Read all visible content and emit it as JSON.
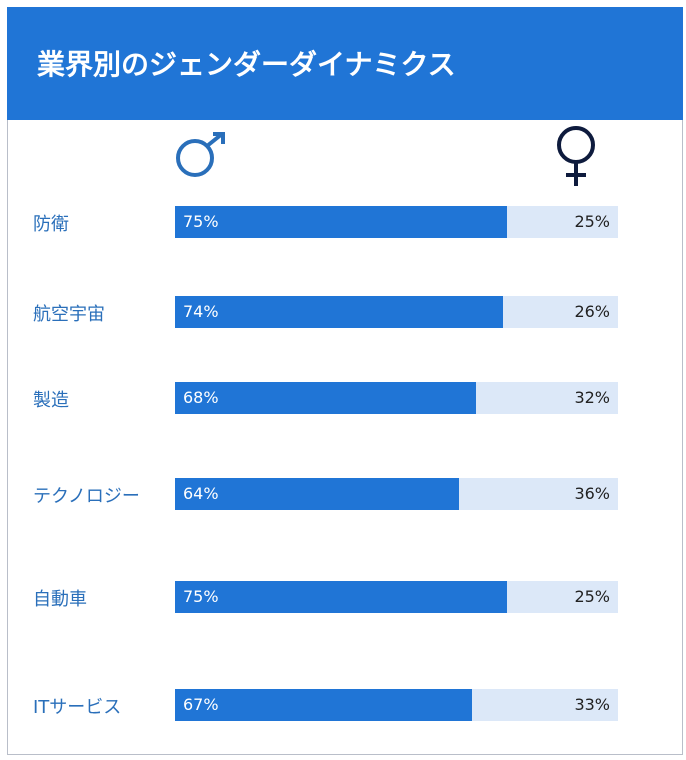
{
  "title": "業界別のジェンダーダイナミクス",
  "symbols": {
    "male_icon": "male-symbol",
    "female_icon": "female-symbol"
  },
  "colors": {
    "header": "#2075d6",
    "male_bar": "#2075d6",
    "female_bar": "#dce8f8",
    "label": "#2a6fba",
    "male_symbol": "#2a6fba",
    "female_symbol": "#0e1b3d"
  },
  "chart_data": {
    "type": "bar",
    "orientation": "horizontal-stacked",
    "categories": [
      "防衛",
      "航空宇宙",
      "製造",
      "テクノロジー",
      "自動車",
      "ITサービス"
    ],
    "series": [
      {
        "values": [
          75,
          74,
          68,
          64,
          75,
          67
        ]
      },
      {
        "values": [
          25,
          26,
          32,
          36,
          25,
          33
        ]
      }
    ],
    "labels": [
      {
        "male": "75%",
        "female": "25%"
      },
      {
        "male": "74%",
        "female": "26%"
      },
      {
        "male": "68%",
        "female": "32%"
      },
      {
        "male": "64%",
        "female": "36%"
      },
      {
        "male": "75%",
        "female": "25%"
      },
      {
        "male": "67%",
        "female": "33%"
      }
    ],
    "unit": "%",
    "ylim": [
      0,
      100
    ]
  }
}
